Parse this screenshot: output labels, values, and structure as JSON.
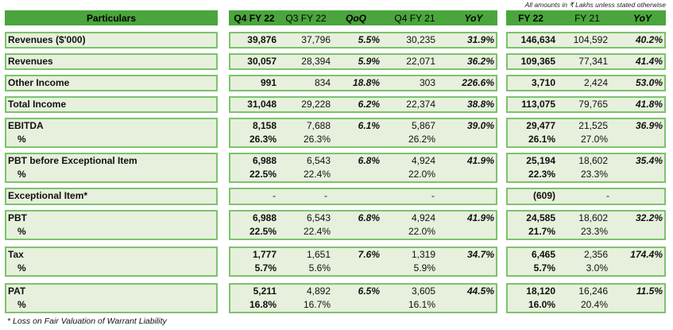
{
  "note": "All amounts in ₹ Lakhs unless stated otherwise",
  "headers": {
    "particulars": "Particulars",
    "q4fy22": "Q4 FY 22",
    "q3fy22": "Q3 FY 22",
    "qoq": "QoQ",
    "q4fy21": "Q4 FY 21",
    "yoy": "YoY",
    "fy22": "FY 22",
    "fy21": "FY 21",
    "yoy2": "YoY"
  },
  "rows": [
    {
      "label": "Revenues ($'000)",
      "q4fy22": "39,876",
      "q3fy22": "37,796",
      "qoq": "5.5%",
      "q4fy21": "30,235",
      "yoy": "31.9%",
      "fy22": "146,634",
      "fy21": "104,592",
      "yoy2": "40.2%"
    },
    {
      "label": "Revenues",
      "q4fy22": "30,057",
      "q3fy22": "28,394",
      "qoq": "5.9%",
      "q4fy21": "22,071",
      "yoy": "36.2%",
      "fy22": "109,365",
      "fy21": "77,341",
      "yoy2": "41.4%"
    },
    {
      "label": "Other Income",
      "q4fy22": "991",
      "q3fy22": "834",
      "qoq": "18.8%",
      "q4fy21": "303",
      "yoy": "226.6%",
      "fy22": "3,710",
      "fy21": "2,424",
      "yoy2": "53.0%"
    },
    {
      "label": "Total Income",
      "q4fy22": "31,048",
      "q3fy22": "29,228",
      "qoq": "6.2%",
      "q4fy21": "22,374",
      "yoy": "38.8%",
      "fy22": "113,075",
      "fy21": "79,765",
      "yoy2": "41.8%"
    },
    {
      "label": "EBITDA",
      "q4fy22": "8,158",
      "q3fy22": "7,688",
      "qoq": "6.1%",
      "q4fy21": "5,867",
      "yoy": "39.0%",
      "fy22": "29,477",
      "fy21": "21,525",
      "yoy2": "36.9%",
      "sub": {
        "label": "%",
        "q4fy22": "26.3%",
        "q3fy22": "26.3%",
        "q4fy21": "26.2%",
        "fy22": "26.1%",
        "fy21": "27.0%"
      }
    },
    {
      "label": "PBT before Exceptional Item",
      "q4fy22": "6,988",
      "q3fy22": "6,543",
      "qoq": "6.8%",
      "q4fy21": "4,924",
      "yoy": "41.9%",
      "fy22": "25,194",
      "fy21": "18,602",
      "yoy2": "35.4%",
      "sub": {
        "label": "%",
        "q4fy22": "22.5%",
        "q3fy22": "22.4%",
        "q4fy21": "22.0%",
        "fy22": "22.3%",
        "fy21": "23.3%"
      }
    },
    {
      "label": "Exceptional Item*",
      "q4fy22": "-",
      "q3fy22": "-",
      "qoq": "",
      "q4fy21": "-",
      "yoy": "",
      "fy22": "(609)",
      "fy21": "-",
      "yoy2": ""
    },
    {
      "label": "PBT",
      "q4fy22": "6,988",
      "q3fy22": "6,543",
      "qoq": "6.8%",
      "q4fy21": "4,924",
      "yoy": "41.9%",
      "fy22": "24,585",
      "fy21": "18,602",
      "yoy2": "32.2%",
      "sub": {
        "label": "%",
        "q4fy22": "22.5%",
        "q3fy22": "22.4%",
        "q4fy21": "22.0%",
        "fy22": "21.7%",
        "fy21": "23.3%"
      }
    },
    {
      "label": "Tax",
      "q4fy22": "1,777",
      "q3fy22": "1,651",
      "qoq": "7.6%",
      "q4fy21": "1,319",
      "yoy": "34.7%",
      "fy22": "6,465",
      "fy21": "2,356",
      "yoy2": "174.4%",
      "sub": {
        "label": "%",
        "q4fy22": "5.7%",
        "q3fy22": "5.6%",
        "q4fy21": "5.9%",
        "fy22": "5.7%",
        "fy21": "3.0%"
      }
    },
    {
      "label": "PAT",
      "q4fy22": "5,211",
      "q3fy22": "4,892",
      "qoq": "6.5%",
      "q4fy21": "3,605",
      "yoy": "44.5%",
      "fy22": "18,120",
      "fy21": "16,246",
      "yoy2": "11.5%",
      "sub": {
        "label": "%",
        "q4fy22": "16.8%",
        "q3fy22": "16.7%",
        "q4fy21": "16.1%",
        "fy22": "16.0%",
        "fy21": "20.4%"
      }
    }
  ],
  "footnote": "* Loss on Fair Valuation of Warrant Liability",
  "colors": {
    "header": "#4aa63c",
    "border": "#7cc36c",
    "fill": "#e6f0dc"
  }
}
